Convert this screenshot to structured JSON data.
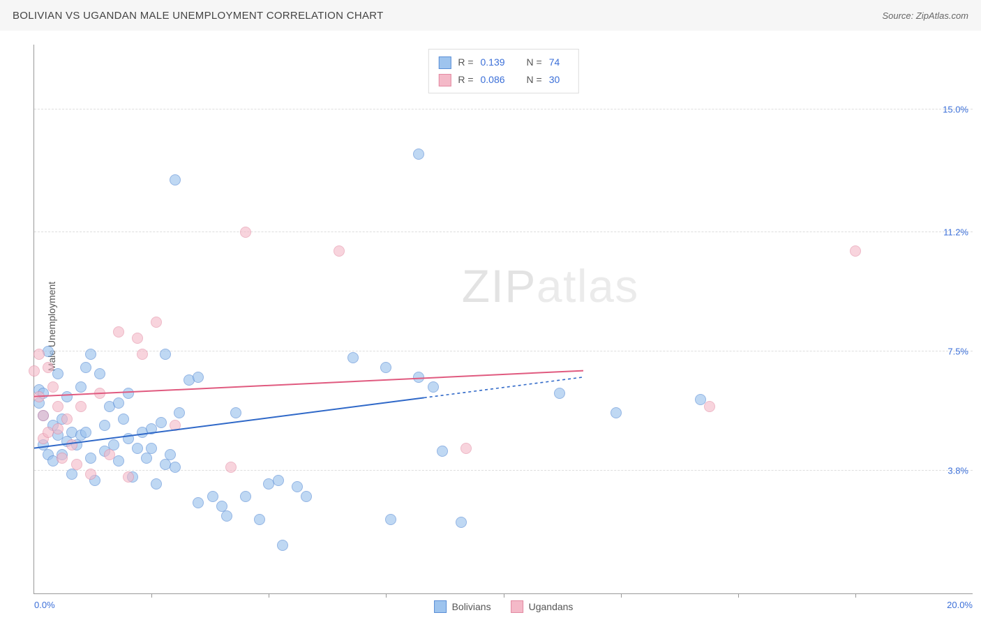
{
  "header": {
    "title": "BOLIVIAN VS UGANDAN MALE UNEMPLOYMENT CORRELATION CHART",
    "source": "Source: ZipAtlas.com"
  },
  "watermark": {
    "zip": "ZIP",
    "atlas": "atlas"
  },
  "chart": {
    "type": "scatter",
    "ylabel": "Male Unemployment",
    "xlim": [
      0,
      20
    ],
    "ylim": [
      0,
      17
    ],
    "x_axis_labels": {
      "min": "0.0%",
      "max": "20.0%"
    },
    "x_ticks": [
      2.5,
      5.0,
      7.5,
      10.0,
      12.5,
      15.0,
      17.5
    ],
    "y_gridlines": [
      {
        "value": 3.8,
        "label": "3.8%"
      },
      {
        "value": 7.5,
        "label": "7.5%"
      },
      {
        "value": 11.2,
        "label": "11.2%"
      },
      {
        "value": 15.0,
        "label": "15.0%"
      }
    ],
    "series": [
      {
        "name": "Bolivians",
        "fill": "#9ec4ee",
        "stroke": "#5a8ed6",
        "fill_opacity": 0.65,
        "r_label": "R =",
        "r_value": "0.139",
        "n_label": "N =",
        "n_value": "74",
        "trend": {
          "y0": 4.5,
          "y1": 6.7,
          "solid_until_x": 14.2,
          "color": "#2f68c8",
          "width": 2
        },
        "data": [
          [
            0.1,
            5.9
          ],
          [
            0.1,
            6.3
          ],
          [
            0.2,
            5.5
          ],
          [
            0.2,
            4.6
          ],
          [
            0.2,
            6.2
          ],
          [
            0.3,
            4.3
          ],
          [
            0.3,
            7.5
          ],
          [
            0.4,
            5.2
          ],
          [
            0.4,
            4.1
          ],
          [
            0.5,
            6.8
          ],
          [
            0.5,
            4.9
          ],
          [
            0.6,
            4.3
          ],
          [
            0.6,
            5.4
          ],
          [
            0.7,
            6.1
          ],
          [
            0.7,
            4.7
          ],
          [
            0.8,
            5.0
          ],
          [
            0.8,
            3.7
          ],
          [
            0.9,
            4.6
          ],
          [
            1.0,
            4.9
          ],
          [
            1.0,
            6.4
          ],
          [
            1.1,
            7.0
          ],
          [
            1.1,
            5.0
          ],
          [
            1.2,
            4.2
          ],
          [
            1.2,
            7.4
          ],
          [
            1.3,
            3.5
          ],
          [
            1.4,
            6.8
          ],
          [
            1.5,
            5.2
          ],
          [
            1.5,
            4.4
          ],
          [
            1.6,
            5.8
          ],
          [
            1.7,
            4.6
          ],
          [
            1.8,
            5.9
          ],
          [
            1.8,
            4.1
          ],
          [
            1.9,
            5.4
          ],
          [
            2.0,
            4.8
          ],
          [
            2.0,
            6.2
          ],
          [
            2.1,
            3.6
          ],
          [
            2.2,
            4.5
          ],
          [
            2.3,
            5.0
          ],
          [
            2.4,
            4.2
          ],
          [
            2.5,
            5.1
          ],
          [
            2.5,
            4.5
          ],
          [
            2.6,
            3.4
          ],
          [
            2.7,
            5.3
          ],
          [
            2.8,
            4.0
          ],
          [
            2.8,
            7.4
          ],
          [
            2.9,
            4.3
          ],
          [
            3.0,
            3.9
          ],
          [
            3.0,
            12.8
          ],
          [
            3.1,
            5.6
          ],
          [
            3.3,
            6.6
          ],
          [
            3.5,
            6.7
          ],
          [
            3.5,
            2.8
          ],
          [
            3.8,
            3.0
          ],
          [
            4.0,
            2.7
          ],
          [
            4.1,
            2.4
          ],
          [
            4.3,
            5.6
          ],
          [
            4.5,
            3.0
          ],
          [
            4.8,
            2.3
          ],
          [
            5.0,
            3.4
          ],
          [
            5.2,
            3.5
          ],
          [
            5.3,
            1.5
          ],
          [
            5.6,
            3.3
          ],
          [
            5.8,
            3.0
          ],
          [
            6.8,
            7.3
          ],
          [
            7.5,
            7.0
          ],
          [
            7.6,
            2.3
          ],
          [
            8.2,
            6.7
          ],
          [
            8.2,
            13.6
          ],
          [
            8.5,
            6.4
          ],
          [
            8.7,
            4.4
          ],
          [
            9.1,
            2.2
          ],
          [
            11.2,
            6.2
          ],
          [
            14.2,
            6.0
          ],
          [
            12.4,
            5.6
          ]
        ]
      },
      {
        "name": "Ugandans",
        "fill": "#f4b9c8",
        "stroke": "#e38aa2",
        "fill_opacity": 0.6,
        "r_label": "R =",
        "r_value": "0.086",
        "n_label": "N =",
        "n_value": "30",
        "trend": {
          "y0": 6.1,
          "y1": 6.9,
          "solid_until_x": 20.0,
          "color": "#e05a7f",
          "width": 2
        },
        "data": [
          [
            0.0,
            6.9
          ],
          [
            0.1,
            6.1
          ],
          [
            0.1,
            7.4
          ],
          [
            0.2,
            5.5
          ],
          [
            0.2,
            4.8
          ],
          [
            0.3,
            7.0
          ],
          [
            0.3,
            5.0
          ],
          [
            0.4,
            6.4
          ],
          [
            0.5,
            5.1
          ],
          [
            0.5,
            5.8
          ],
          [
            0.6,
            4.2
          ],
          [
            0.7,
            5.4
          ],
          [
            0.8,
            4.6
          ],
          [
            0.9,
            4.0
          ],
          [
            1.0,
            5.8
          ],
          [
            1.2,
            3.7
          ],
          [
            1.4,
            6.2
          ],
          [
            1.6,
            4.3
          ],
          [
            1.8,
            8.1
          ],
          [
            2.0,
            3.6
          ],
          [
            2.2,
            7.9
          ],
          [
            2.3,
            7.4
          ],
          [
            2.6,
            8.4
          ],
          [
            3.0,
            5.2
          ],
          [
            4.2,
            3.9
          ],
          [
            4.5,
            11.2
          ],
          [
            6.5,
            10.6
          ],
          [
            9.2,
            4.5
          ],
          [
            14.4,
            5.8
          ],
          [
            17.5,
            10.6
          ]
        ]
      }
    ]
  }
}
